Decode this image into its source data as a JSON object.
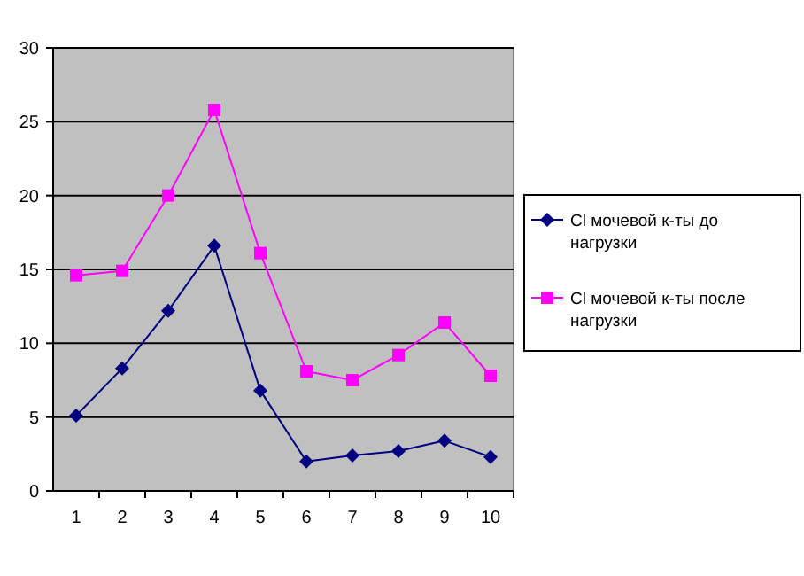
{
  "chart_data": {
    "type": "line",
    "categories": [
      "1",
      "2",
      "3",
      "4",
      "5",
      "6",
      "7",
      "8",
      "9",
      "10"
    ],
    "series": [
      {
        "name": "Cl мочевой к-ты до нагрузки",
        "color": "#000080",
        "marker": "diamond",
        "values": [
          5.1,
          8.3,
          12.2,
          16.6,
          6.8,
          2.0,
          2.4,
          2.7,
          3.4,
          2.3
        ]
      },
      {
        "name": "Cl мочевой к-ты после нагрузки",
        "color": "#ff00ff",
        "marker": "square",
        "values": [
          14.6,
          14.9,
          20.0,
          25.8,
          16.1,
          8.1,
          7.5,
          9.2,
          11.4,
          7.8
        ]
      }
    ],
    "ylim": [
      0,
      30
    ],
    "yticks": [
      0,
      5,
      10,
      15,
      20,
      25,
      30
    ],
    "grid": "y",
    "legend": "right"
  }
}
